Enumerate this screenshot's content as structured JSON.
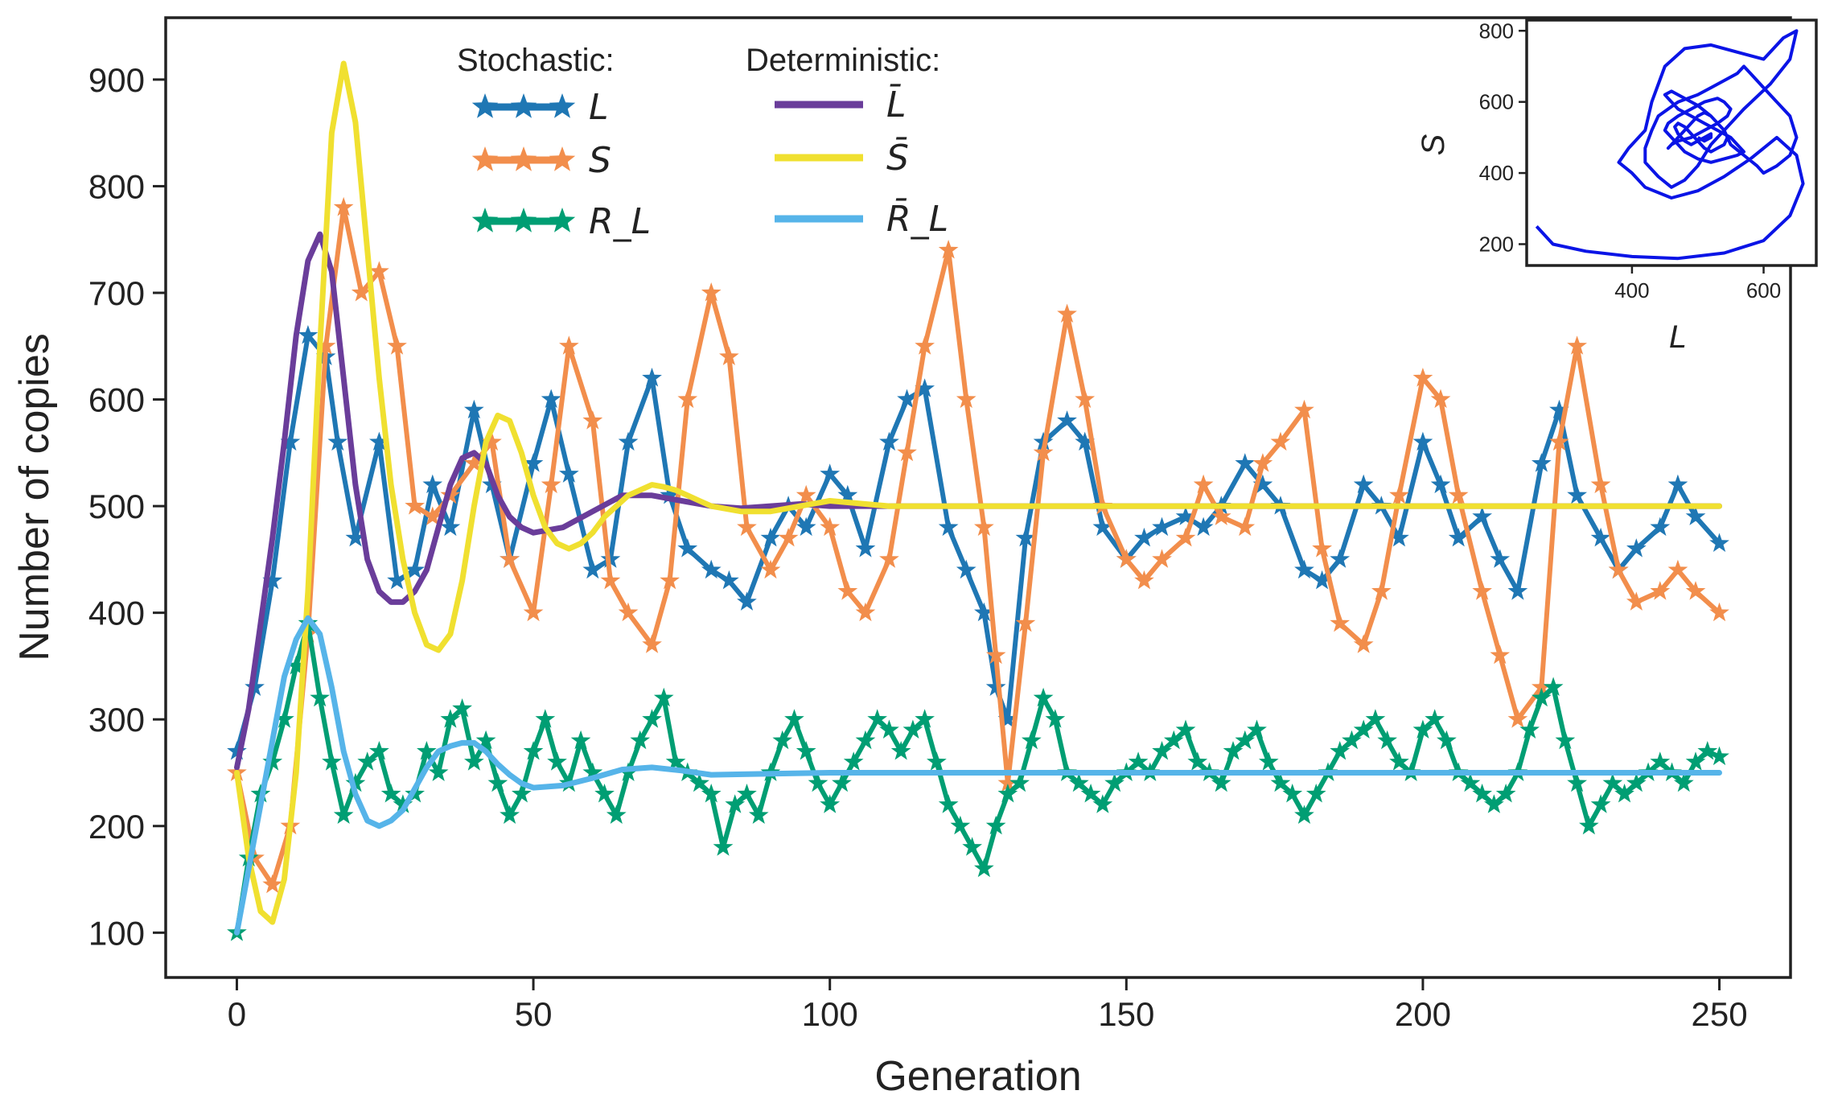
{
  "chart_data": [
    {
      "type": "line",
      "title": "",
      "xlabel": "Generation",
      "ylabel": "Number of copies",
      "xlim": [
        -12,
        262
      ],
      "ylim": [
        58,
        958
      ],
      "xticks": [
        0,
        50,
        100,
        150,
        200,
        250
      ],
      "yticks": [
        100,
        200,
        300,
        400,
        500,
        600,
        700,
        800,
        900
      ],
      "grid": false,
      "legend": {
        "placement": "top-center",
        "stochastic_header": "Stochastic:",
        "deterministic_header": "Deterministic:"
      },
      "series": [
        {
          "name": "L",
          "group": "stochastic",
          "marker": "star",
          "color": "#1f77b4",
          "x": [
            0,
            3,
            6,
            9,
            12,
            15,
            17,
            20,
            24,
            27,
            30,
            33,
            36,
            40,
            43,
            46,
            50,
            53,
            56,
            60,
            63,
            66,
            70,
            73,
            76,
            80,
            83,
            86,
            90,
            93,
            96,
            100,
            103,
            106,
            110,
            113,
            116,
            120,
            123,
            126,
            128,
            130,
            133,
            136,
            140,
            143,
            146,
            150,
            153,
            156,
            160,
            163,
            166,
            170,
            173,
            176,
            180,
            183,
            186,
            190,
            193,
            196,
            200,
            203,
            206,
            210,
            213,
            216,
            220,
            223,
            226,
            230,
            233,
            236,
            240,
            243,
            246,
            250
          ],
          "values": [
            270,
            330,
            430,
            560,
            660,
            640,
            560,
            470,
            560,
            430,
            440,
            520,
            480,
            590,
            520,
            450,
            540,
            600,
            530,
            440,
            450,
            560,
            620,
            510,
            460,
            440,
            430,
            410,
            470,
            500,
            480,
            530,
            510,
            460,
            560,
            600,
            610,
            480,
            440,
            400,
            330,
            300,
            470,
            560,
            580,
            560,
            480,
            450,
            470,
            480,
            490,
            480,
            500,
            540,
            520,
            500,
            440,
            430,
            450,
            520,
            500,
            470,
            560,
            520,
            470,
            490,
            450,
            420,
            540,
            590,
            510,
            470,
            440,
            460,
            480,
            520,
            490,
            465
          ]
        },
        {
          "name": "S",
          "group": "stochastic",
          "marker": "star",
          "color": "#f28e4c",
          "x": [
            0,
            3,
            6,
            9,
            12,
            15,
            18,
            21,
            24,
            27,
            30,
            33,
            36,
            40,
            43,
            46,
            50,
            53,
            56,
            60,
            63,
            66,
            70,
            73,
            76,
            80,
            83,
            86,
            90,
            93,
            96,
            100,
            103,
            106,
            110,
            113,
            116,
            120,
            123,
            126,
            128,
            130,
            133,
            136,
            140,
            143,
            146,
            150,
            153,
            156,
            160,
            163,
            166,
            170,
            173,
            176,
            180,
            183,
            186,
            190,
            193,
            196,
            200,
            203,
            206,
            210,
            213,
            216,
            220,
            223,
            226,
            230,
            233,
            236,
            240,
            243,
            246,
            250
          ],
          "values": [
            250,
            170,
            145,
            200,
            380,
            650,
            780,
            700,
            720,
            650,
            500,
            490,
            510,
            540,
            560,
            450,
            400,
            520,
            650,
            580,
            430,
            400,
            370,
            430,
            600,
            700,
            640,
            480,
            440,
            470,
            510,
            480,
            420,
            400,
            450,
            550,
            650,
            740,
            600,
            480,
            360,
            240,
            390,
            550,
            680,
            600,
            500,
            450,
            430,
            450,
            470,
            520,
            490,
            480,
            540,
            560,
            590,
            460,
            390,
            370,
            420,
            510,
            620,
            600,
            510,
            420,
            360,
            300,
            330,
            560,
            650,
            520,
            440,
            410,
            420,
            440,
            420,
            400
          ]
        },
        {
          "name": "R_L",
          "group": "stochastic",
          "marker": "star",
          "color": "#009e73",
          "x": [
            0,
            2,
            4,
            6,
            8,
            10,
            12,
            14,
            16,
            18,
            20,
            22,
            24,
            26,
            28,
            30,
            32,
            34,
            36,
            38,
            40,
            42,
            44,
            46,
            48,
            50,
            52,
            54,
            56,
            58,
            60,
            62,
            64,
            66,
            68,
            70,
            72,
            74,
            76,
            78,
            80,
            82,
            84,
            86,
            88,
            90,
            92,
            94,
            96,
            98,
            100,
            102,
            104,
            106,
            108,
            110,
            112,
            114,
            116,
            118,
            120,
            122,
            124,
            126,
            128,
            130,
            132,
            134,
            136,
            138,
            140,
            142,
            144,
            146,
            148,
            150,
            152,
            154,
            156,
            158,
            160,
            162,
            164,
            166,
            168,
            170,
            172,
            174,
            176,
            178,
            180,
            182,
            184,
            186,
            188,
            190,
            192,
            194,
            196,
            198,
            200,
            202,
            204,
            206,
            208,
            210,
            212,
            214,
            216,
            218,
            220,
            222,
            224,
            226,
            228,
            230,
            232,
            234,
            236,
            238,
            240,
            242,
            244,
            246,
            248,
            250
          ],
          "values": [
            100,
            170,
            230,
            260,
            300,
            350,
            390,
            320,
            260,
            210,
            240,
            260,
            270,
            230,
            220,
            230,
            270,
            250,
            300,
            310,
            260,
            280,
            240,
            210,
            230,
            270,
            300,
            260,
            240,
            280,
            250,
            230,
            210,
            250,
            280,
            300,
            320,
            260,
            250,
            240,
            230,
            180,
            220,
            230,
            210,
            250,
            280,
            300,
            270,
            240,
            220,
            240,
            260,
            280,
            300,
            290,
            270,
            290,
            300,
            260,
            220,
            200,
            180,
            160,
            200,
            230,
            240,
            280,
            320,
            300,
            250,
            240,
            230,
            220,
            240,
            250,
            260,
            250,
            270,
            280,
            290,
            260,
            250,
            240,
            270,
            280,
            290,
            260,
            240,
            230,
            210,
            230,
            250,
            270,
            280,
            290,
            300,
            280,
            260,
            250,
            290,
            300,
            280,
            250,
            240,
            230,
            220,
            230,
            250,
            290,
            320,
            330,
            280,
            240,
            200,
            220,
            240,
            230,
            240,
            250,
            260,
            250,
            240,
            260,
            270,
            265
          ]
        },
        {
          "name": "L̄",
          "group": "deterministic",
          "color": "#6a3d9a",
          "x": [
            0,
            2,
            4,
            6,
            8,
            10,
            12,
            14,
            16,
            18,
            20,
            22,
            24,
            26,
            28,
            30,
            32,
            34,
            36,
            38,
            40,
            42,
            44,
            46,
            48,
            50,
            55,
            60,
            65,
            70,
            75,
            80,
            85,
            90,
            95,
            100,
            110,
            120,
            130,
            140,
            150,
            200,
            250
          ],
          "values": [
            255,
            310,
            390,
            470,
            560,
            660,
            730,
            755,
            720,
            620,
            520,
            450,
            420,
            410,
            410,
            420,
            440,
            480,
            520,
            545,
            550,
            540,
            510,
            490,
            480,
            475,
            480,
            495,
            510,
            510,
            505,
            500,
            498,
            500,
            502,
            500,
            500,
            500,
            500,
            500,
            500,
            500,
            500
          ]
        },
        {
          "name": "S̄",
          "group": "deterministic",
          "color": "#f0e030",
          "x": [
            0,
            2,
            4,
            6,
            8,
            10,
            12,
            14,
            16,
            18,
            20,
            22,
            24,
            26,
            28,
            30,
            32,
            34,
            36,
            38,
            40,
            42,
            44,
            46,
            48,
            50,
            52,
            54,
            56,
            58,
            60,
            62,
            64,
            66,
            68,
            70,
            72,
            74,
            76,
            78,
            80,
            85,
            90,
            95,
            100,
            110,
            120,
            130,
            140,
            150,
            200,
            250
          ],
          "values": [
            250,
            170,
            120,
            110,
            150,
            250,
            420,
            650,
            850,
            915,
            860,
            740,
            620,
            520,
            450,
            400,
            370,
            365,
            380,
            430,
            500,
            560,
            585,
            580,
            550,
            510,
            480,
            465,
            460,
            465,
            475,
            490,
            500,
            510,
            515,
            520,
            518,
            515,
            510,
            505,
            500,
            495,
            495,
            500,
            505,
            500,
            500,
            500,
            500,
            500,
            500,
            500
          ]
        },
        {
          "name": "R̄_L",
          "group": "deterministic",
          "color": "#56b4e9",
          "x": [
            0,
            2,
            4,
            6,
            8,
            10,
            12,
            14,
            16,
            18,
            20,
            22,
            24,
            26,
            28,
            30,
            32,
            34,
            36,
            38,
            40,
            42,
            44,
            46,
            48,
            50,
            55,
            60,
            65,
            70,
            75,
            80,
            90,
            100,
            120,
            150,
            200,
            250
          ],
          "values": [
            100,
            160,
            220,
            280,
            340,
            375,
            395,
            380,
            330,
            270,
            230,
            205,
            200,
            205,
            215,
            235,
            255,
            270,
            275,
            278,
            278,
            270,
            258,
            248,
            240,
            236,
            238,
            245,
            253,
            255,
            252,
            248,
            249,
            250,
            250,
            250,
            250,
            250
          ]
        }
      ]
    },
    {
      "type": "line",
      "title": "",
      "xlabel": "L",
      "ylabel": "S",
      "xlim": [
        240,
        680
      ],
      "ylim": [
        140,
        830
      ],
      "xticks": [
        400,
        600
      ],
      "yticks": [
        200,
        400,
        600,
        800
      ],
      "grid": false,
      "color": "#0a14e6",
      "x": [
        255,
        280,
        330,
        400,
        470,
        540,
        600,
        640,
        660,
        650,
        620,
        580,
        540,
        500,
        460,
        420,
        400,
        380,
        395,
        420,
        430,
        450,
        480,
        520,
        560,
        600,
        630,
        650,
        640,
        610,
        570,
        540,
        520,
        500,
        480,
        460,
        440,
        420,
        420,
        430,
        440,
        470,
        500,
        520,
        540,
        560,
        570,
        580,
        600,
        620,
        640,
        650,
        640,
        620,
        600,
        590,
        570,
        550,
        540,
        520,
        500,
        480,
        460,
        450,
        460,
        470,
        490,
        510,
        530,
        550,
        560,
        570,
        560,
        540,
        520,
        500,
        480,
        470,
        460,
        450,
        455,
        470,
        490,
        510,
        530,
        540,
        550,
        545,
        530,
        510,
        490,
        470,
        460,
        455,
        460,
        470,
        480,
        490,
        500,
        510,
        520,
        530,
        540,
        545,
        540,
        530,
        520,
        510,
        500,
        490,
        480,
        470,
        465,
        470,
        480,
        490,
        500,
        510,
        520,
        520,
        510,
        500
      ],
      "values": [
        250,
        200,
        180,
        165,
        160,
        175,
        210,
        280,
        370,
        450,
        500,
        440,
        390,
        350,
        330,
        360,
        400,
        430,
        470,
        520,
        600,
        700,
        750,
        760,
        740,
        720,
        780,
        800,
        720,
        650,
        580,
        520,
        480,
        420,
        380,
        360,
        390,
        430,
        470,
        520,
        560,
        600,
        620,
        640,
        660,
        680,
        700,
        680,
        640,
        600,
        560,
        500,
        450,
        420,
        400,
        420,
        450,
        480,
        520,
        560,
        590,
        610,
        630,
        620,
        600,
        580,
        560,
        540,
        520,
        500,
        480,
        460,
        450,
        440,
        430,
        440,
        460,
        480,
        500,
        520,
        540,
        560,
        580,
        600,
        610,
        600,
        580,
        560,
        540,
        520,
        500,
        490,
        480,
        470,
        480,
        500,
        520,
        540,
        560,
        570,
        560,
        540,
        520,
        500,
        480,
        470,
        460,
        470,
        490,
        510,
        530,
        540,
        530,
        510,
        490,
        480,
        490,
        500,
        510,
        500,
        490,
        500
      ]
    }
  ]
}
